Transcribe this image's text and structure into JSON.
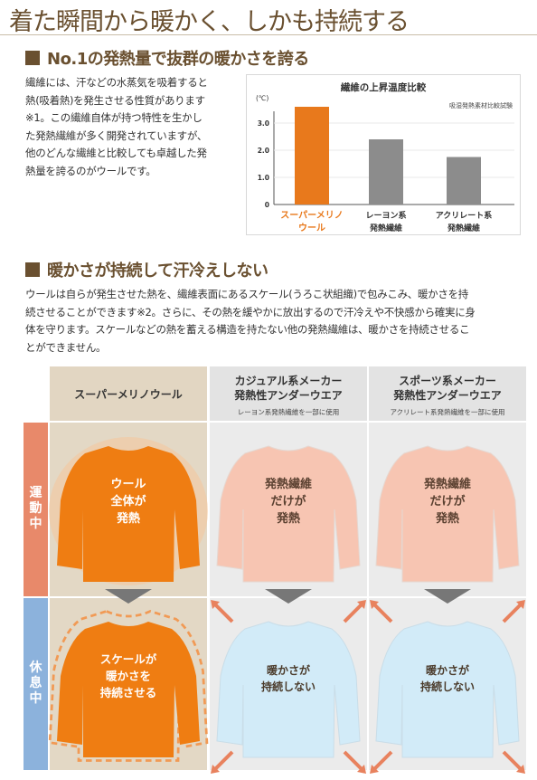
{
  "header": {
    "title": "着た瞬間から暖かく、しかも持続する"
  },
  "section1": {
    "title": "No.1の発熱量で抜群の暖かさを誇る",
    "text_lines": [
      "繊維には、汗などの水蒸気を吸着すると",
      "熱(吸着熱)を発生させる性質があります",
      "※1。この繊維自体が持つ特性を生かし",
      "た発熱繊維が多く開発されていますが、",
      "他のどんな繊維と比較しても卓越した発",
      "熱量を誇るのがウールです。"
    ]
  },
  "chart_data": {
    "type": "bar",
    "title": "繊維の上昇温度比較",
    "subtitle": "吸湿発熱素材比較試験",
    "ylabel": "(℃)",
    "ylim": [
      0,
      3.5
    ],
    "yticks": [
      "0",
      "1.0",
      "2.0",
      "3.0"
    ],
    "categories": [
      [
        "スーパーメリノ",
        "ウール"
      ],
      [
        "レーヨン系",
        "発熱繊維"
      ],
      [
        "アクリレート系",
        "発熱繊維"
      ]
    ],
    "values": [
      3.6,
      2.4,
      1.75
    ],
    "colors": [
      "#e8791c",
      "#8c8c8c",
      "#8c8c8c"
    ]
  },
  "section2": {
    "title": "暖かさが持続して汗冷えしない",
    "text_lines": [
      "ウールは自らが発生させた熱を、繊維表面にあるスケール(うろこ状組織)で包みこみ、暖かさを持",
      "続させることができます※2。さらに、その熱を緩やかに放出するので汗冷えや不快感から確実に身",
      "体を守ります。スケールなどの熱を蓄える構造を持たない他の発熱繊維は、暖かさを持続させるこ",
      "とができません。"
    ]
  },
  "comparison": {
    "columns": [
      {
        "main": [
          "スーパーメリノウール"
        ],
        "sub": ""
      },
      {
        "main": [
          "カジュアル系メーカー",
          "発熱性アンダーウエア"
        ],
        "sub": "レーヨン系発熱繊維を一部に使用"
      },
      {
        "main": [
          "スポーツ系メーカー",
          "発熱性アンダーウエア"
        ],
        "sub": "アクリレート系発熱繊維を一部に使用"
      }
    ],
    "rows": [
      {
        "label": [
          "運",
          "動",
          "中"
        ],
        "color": "#e8896a"
      },
      {
        "label": [
          "休",
          "息",
          "中"
        ],
        "color": "#8cb2dc"
      }
    ],
    "exercise_texts": [
      [
        "ウール",
        "全体が",
        "発熱"
      ],
      [
        "発熱繊維",
        "だけが",
        "発熱"
      ],
      [
        "発熱繊維",
        "だけが",
        "発熱"
      ]
    ],
    "rest_texts": [
      [
        "スケールが",
        "暖かさを",
        "持続させる"
      ],
      [
        "暖かさが",
        "持続しない"
      ],
      [
        "暖かさが",
        "持続しない"
      ]
    ],
    "colors": {
      "wool": "#ef7d12",
      "pink": "#f7c5b2",
      "blue": "#d2ebf8",
      "arrow": "#e8825e"
    }
  }
}
